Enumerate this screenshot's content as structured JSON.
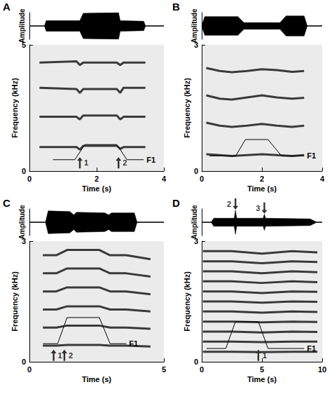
{
  "chart_data": [
    {
      "type": "line",
      "title": "A",
      "xlabel": "Time (s)",
      "ylabel": "Frequency (kHz)",
      "xlim": [
        0,
        4
      ],
      "xticks": [
        0,
        2,
        4
      ],
      "ylim": [
        0,
        5
      ],
      "yticks": [
        0,
        5
      ],
      "amplitude": {
        "label": "Amplitude",
        "tick_labels": false,
        "ylim": [
          -1,
          1
        ],
        "x": [
          0,
          0.45,
          0.5,
          1.5,
          1.6,
          2.65,
          2.7,
          3.4,
          3.45,
          4
        ],
        "upper": [
          0.02,
          0.02,
          0.4,
          0.4,
          0.95,
          1.0,
          0.4,
          0.35,
          0.02,
          0.02
        ],
        "lower": [
          -0.02,
          -0.02,
          -0.4,
          -0.4,
          -0.95,
          -1.0,
          -0.4,
          -0.35,
          -0.02,
          -0.02
        ]
      },
      "harmonics": {
        "x": [
          0.3,
          1.4,
          1.5,
          1.6,
          2.6,
          2.7,
          2.8,
          3.45
        ],
        "values": [
          [
            0.95,
            0.95,
            0.85,
            1.0,
            1.0,
            0.88,
            0.95,
            0.95
          ],
          [
            2.15,
            2.15,
            2.05,
            2.2,
            2.2,
            2.05,
            2.15,
            2.15
          ],
          [
            3.3,
            3.25,
            3.1,
            3.25,
            3.25,
            3.1,
            3.3,
            3.3
          ],
          [
            4.3,
            4.35,
            4.2,
            4.3,
            4.3,
            4.2,
            4.3,
            4.3
          ]
        ]
      },
      "f1": {
        "name": "F1",
        "x": [
          0.7,
          1.35,
          1.65,
          2.6,
          2.9,
          3.4
        ],
        "values": [
          0.45,
          0.45,
          1.05,
          1.05,
          0.45,
          0.45
        ]
      },
      "arrows": [
        {
          "label": "1",
          "x": 1.5,
          "y": 0.55
        },
        {
          "label": "2",
          "x": 2.65,
          "y": 0.55
        }
      ],
      "amplitude_arrows": []
    },
    {
      "type": "line",
      "title": "B",
      "xlabel": "Time (s)",
      "ylabel": "Frequency (kHz)",
      "xlim": [
        0,
        4
      ],
      "xticks": [
        0,
        2,
        4
      ],
      "ylim": [
        0,
        3
      ],
      "yticks": [
        0,
        3
      ],
      "amplitude": {
        "label": "Amplitude",
        "tick_labels": false,
        "ylim": [
          -1,
          1
        ],
        "x": [
          0,
          0.1,
          1.2,
          1.4,
          2.6,
          2.8,
          3.4,
          3.5,
          4
        ],
        "upper": [
          0.02,
          0.7,
          0.7,
          0.25,
          0.25,
          0.75,
          0.75,
          0.02,
          0.02
        ],
        "lower": [
          -0.02,
          -0.7,
          -0.7,
          -0.25,
          -0.25,
          -0.75,
          -0.75,
          -0.02,
          -0.02
        ]
      },
      "harmonics": {
        "x": [
          0.15,
          0.6,
          1.0,
          1.5,
          2.0,
          2.5,
          3.0,
          3.4
        ],
        "values": [
          [
            0.4,
            0.38,
            0.36,
            0.38,
            0.4,
            0.38,
            0.36,
            0.38
          ],
          [
            1.15,
            1.08,
            1.05,
            1.08,
            1.12,
            1.08,
            1.05,
            1.08
          ],
          [
            1.8,
            1.72,
            1.7,
            1.75,
            1.8,
            1.75,
            1.72,
            1.74
          ],
          [
            2.45,
            2.38,
            2.35,
            2.38,
            2.42,
            2.4,
            2.36,
            2.38
          ]
        ]
      },
      "f1": {
        "name": "F1",
        "x": [
          0.26,
          1.13,
          1.45,
          2.2,
          2.65,
          3.4
        ],
        "values": [
          0.36,
          0.36,
          0.75,
          0.75,
          0.36,
          0.36
        ]
      },
      "arrows": [],
      "amplitude_arrows": []
    },
    {
      "type": "line",
      "title": "C",
      "xlabel": "Time (s)",
      "ylabel": "Frequency (kHz)",
      "xlim": [
        0,
        5
      ],
      "xticks": [
        0,
        5
      ],
      "ylim": [
        0,
        3
      ],
      "yticks": [
        0,
        3
      ],
      "amplitude": {
        "label": "Amplitude",
        "tick_labels": false,
        "ylim": [
          -1,
          1
        ],
        "x": [
          0,
          0.6,
          0.7,
          1.5,
          1.65,
          1.75,
          2.8,
          2.95,
          3.05,
          3.9,
          4.0,
          5
        ],
        "upper": [
          0.02,
          0.02,
          0.85,
          0.8,
          0.55,
          0.75,
          0.7,
          0.55,
          0.7,
          0.7,
          0.02,
          0.02
        ],
        "lower": [
          -0.02,
          -0.02,
          -0.85,
          -0.8,
          -0.55,
          -0.75,
          -0.7,
          -0.55,
          -0.7,
          -0.7,
          -0.02,
          -0.02
        ]
      },
      "harmonics": {
        "x": [
          0.5,
          1.0,
          1.4,
          2.0,
          2.6,
          3.0,
          3.6,
          4.5
        ],
        "values": [
          [
            0.4,
            0.4,
            0.42,
            0.42,
            0.42,
            0.4,
            0.4,
            0.38
          ],
          [
            0.85,
            0.85,
            0.9,
            0.9,
            0.9,
            0.85,
            0.85,
            0.82
          ],
          [
            1.3,
            1.3,
            1.38,
            1.38,
            1.38,
            1.3,
            1.3,
            1.25
          ],
          [
            1.75,
            1.75,
            1.85,
            1.85,
            1.85,
            1.75,
            1.75,
            1.68
          ],
          [
            2.2,
            2.2,
            2.32,
            2.32,
            2.32,
            2.2,
            2.2,
            2.12
          ],
          [
            2.65,
            2.65,
            2.78,
            2.78,
            2.78,
            2.65,
            2.65,
            2.55
          ]
        ]
      },
      "f1": {
        "name": "F1",
        "x": [
          0.5,
          1.05,
          1.4,
          2.6,
          3.0,
          3.6
        ],
        "values": [
          0.45,
          0.45,
          1.1,
          1.1,
          0.45,
          0.45
        ]
      },
      "arrows": [
        {
          "label": "1",
          "x": 0.9,
          "y": 0.3
        },
        {
          "label": "2",
          "x": 1.3,
          "y": 0.3
        }
      ],
      "amplitude_arrows": []
    },
    {
      "type": "line",
      "title": "D",
      "xlabel": "Time (s)",
      "ylabel": "Frequency (kHz)",
      "xlim": [
        0,
        10
      ],
      "xticks": [
        0,
        5,
        10
      ],
      "ylim": [
        0,
        3
      ],
      "yticks": [
        0,
        3
      ],
      "amplitude": {
        "label": "Amplitude",
        "tick_labels": false,
        "ylim": [
          -1,
          1
        ],
        "x": [
          0,
          0.8,
          1.0,
          2.7,
          2.8,
          2.9,
          5.1,
          5.2,
          5.3,
          9.0,
          9.5,
          10
        ],
        "upper": [
          0.02,
          0.02,
          0.3,
          0.3,
          0.9,
          0.3,
          0.3,
          0.6,
          0.3,
          0.25,
          0.02,
          0.02
        ],
        "lower": [
          -0.02,
          -0.02,
          -0.3,
          -0.3,
          -0.9,
          -0.3,
          -0.3,
          -0.6,
          -0.3,
          -0.25,
          -0.02,
          -0.02
        ]
      },
      "harmonics": {
        "x": [
          0.1,
          2.5,
          5.0,
          7.5,
          9.6
        ],
        "values": [
          [
            0.25,
            0.25,
            0.24,
            0.25,
            0.25
          ],
          [
            0.5,
            0.5,
            0.49,
            0.5,
            0.5
          ],
          [
            0.75,
            0.75,
            0.73,
            0.75,
            0.74
          ],
          [
            1.0,
            1.0,
            0.98,
            1.0,
            0.99
          ],
          [
            1.25,
            1.25,
            1.22,
            1.25,
            1.24
          ],
          [
            1.5,
            1.5,
            1.47,
            1.5,
            1.49
          ],
          [
            1.75,
            1.75,
            1.71,
            1.75,
            1.74
          ],
          [
            2.0,
            2.0,
            1.96,
            2.0,
            1.98
          ],
          [
            2.25,
            2.25,
            2.2,
            2.25,
            2.23
          ],
          [
            2.5,
            2.5,
            2.45,
            2.5,
            2.48
          ],
          [
            2.75,
            2.75,
            2.69,
            2.75,
            2.72
          ]
        ]
      },
      "f1": {
        "name": "F1",
        "x": [
          0.4,
          2.0,
          2.8,
          4.7,
          5.5,
          8.5
        ],
        "values": [
          0.33,
          0.33,
          1.0,
          1.0,
          0.33,
          0.33
        ]
      },
      "arrows": [
        {
          "label": "1",
          "x": 4.7,
          "y": 0.3
        }
      ],
      "amplitude_arrows": [
        {
          "label": "2",
          "x": 2.8,
          "y": 0.95
        },
        {
          "label": "3",
          "x": 5.2,
          "y": 0.65
        }
      ]
    }
  ]
}
